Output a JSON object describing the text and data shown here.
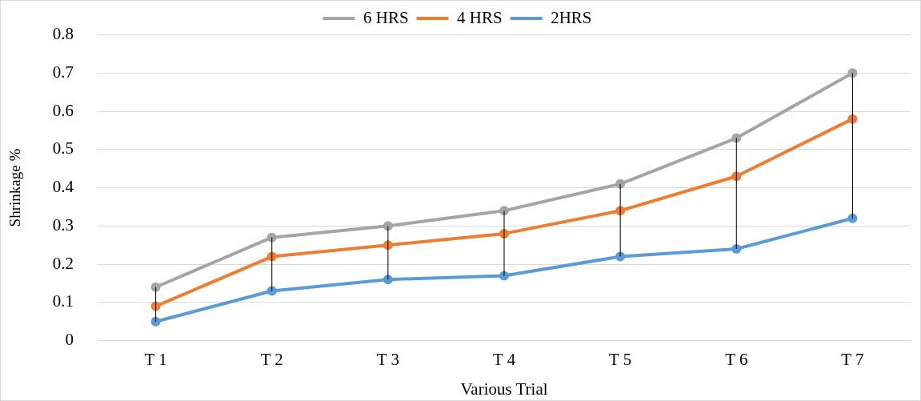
{
  "chart_data": {
    "type": "line",
    "xlabel": "Various Trial",
    "ylabel": "Shrinkage %",
    "categories": [
      "T 1",
      "T 2",
      "T 3",
      "T 4",
      "T 5",
      "T 6",
      "T 7"
    ],
    "series": [
      {
        "name": "6 HRS",
        "color": "#a5a5a5",
        "values": [
          0.14,
          0.27,
          0.3,
          0.34,
          0.41,
          0.53,
          0.7
        ]
      },
      {
        "name": "4 HRS",
        "color": "#ed7d31",
        "values": [
          0.09,
          0.22,
          0.25,
          0.28,
          0.34,
          0.43,
          0.58
        ]
      },
      {
        "name": "2HRS",
        "color": "#5b9bd5",
        "values": [
          0.05,
          0.13,
          0.16,
          0.17,
          0.22,
          0.24,
          0.32
        ],
        "errors": [
          [
            0.05,
            0.14
          ],
          [
            0.13,
            0.27
          ],
          [
            0.16,
            0.3
          ],
          [
            0.17,
            0.34
          ],
          [
            0.22,
            0.41
          ],
          [
            0.24,
            0.53
          ],
          [
            0.32,
            0.7
          ]
        ]
      }
    ],
    "ylim": [
      0,
      0.8
    ],
    "yticks": [
      0,
      0.1,
      0.2,
      0.3,
      0.4,
      0.5,
      0.6,
      0.7,
      0.8
    ],
    "grid": "y",
    "legend": "top",
    "marker": "circle",
    "line_style": "solid"
  }
}
